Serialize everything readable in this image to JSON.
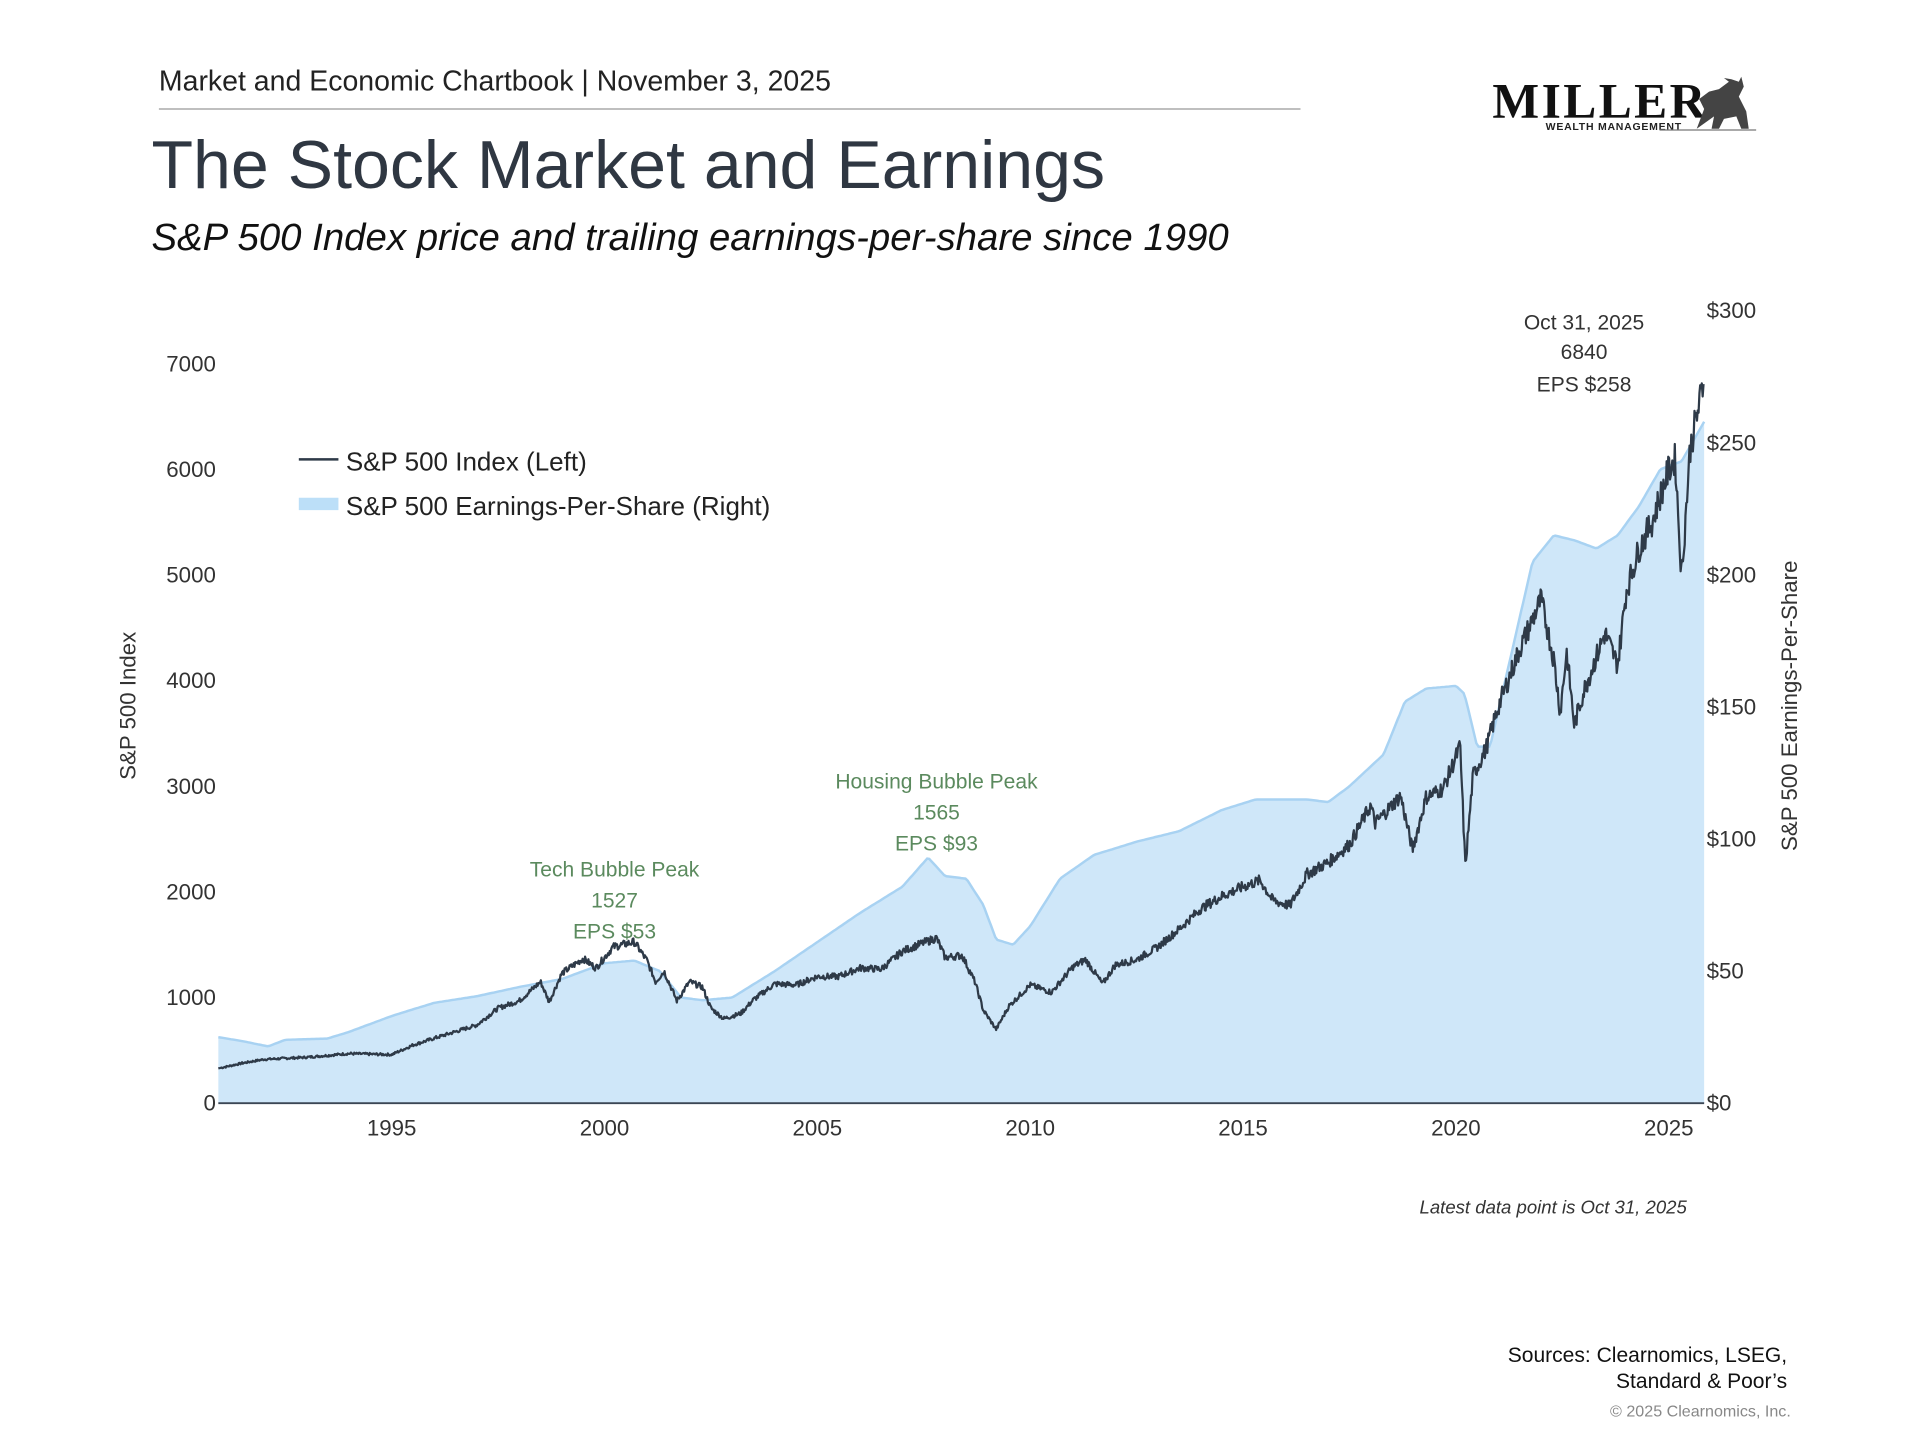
{
  "header": {
    "kicker": "Market and Economic Chartbook | November 3, 2025",
    "title": "The Stock Market and Earnings",
    "subtitle": "S&P 500 Index price and trailing earnings-per-share since 1990"
  },
  "logo": {
    "name": "MILLER",
    "tagline": "WEALTH MANAGEMENT",
    "icon": "bull-icon"
  },
  "colors": {
    "price_line": "#2e3a48",
    "eps_fill": "#cfe7f9",
    "eps_edge": "#a8d2f2",
    "annotation": "#5b8a5e",
    "text": "#2f3742"
  },
  "chart_data": {
    "type": "line+area",
    "xlabel": "",
    "ylabel_left": "S&P 500 Index",
    "ylabel_right": "S&P 500 Earnings-Per-Share",
    "xlim": [
      1990.93,
      2025.83
    ],
    "ylim_left": [
      0,
      7000
    ],
    "ylim_right": [
      0,
      300
    ],
    "x_ticks": [
      "1995",
      "2000",
      "2005",
      "2010",
      "2015",
      "2020",
      "2025"
    ],
    "y_ticks_left": [
      "0",
      "1000",
      "2000",
      "3000",
      "4000",
      "5000",
      "6000",
      "7000"
    ],
    "y_ticks_right": [
      "$0",
      "$50",
      "$100",
      "$150",
      "$200",
      "$250",
      "$300"
    ],
    "grid": false,
    "legend_position": "top-left",
    "legend": [
      "S&P 500 Index (Left)",
      "S&P 500 Earnings-Per-Share (Right)"
    ],
    "series": [
      {
        "name": "S&P 500 Index (Left)",
        "type": "line",
        "axis": "left",
        "x": [
          1990.93,
          1991.5,
          1992,
          1993,
          1994,
          1995,
          1995.5,
          1996,
          1997,
          1997.5,
          1998,
          1998.5,
          1998.7,
          1999,
          1999.5,
          1999.8,
          2000.2,
          2000.7,
          2001,
          2001.2,
          2001.4,
          2001.7,
          2002,
          2002.3,
          2002.5,
          2002.8,
          2003.2,
          2003.5,
          2004,
          2004.5,
          2005,
          2005.5,
          2006,
          2006.5,
          2007,
          2007.5,
          2007.8,
          2008,
          2008.4,
          2008.7,
          2008.9,
          2009.2,
          2009.5,
          2010,
          2010.5,
          2011,
          2011.3,
          2011.7,
          2012,
          2012.5,
          2013,
          2013.5,
          2014,
          2014.5,
          2015,
          2015.4,
          2015.7,
          2016.1,
          2016.5,
          2017,
          2017.5,
          2018,
          2018.1,
          2018.7,
          2018.98,
          2019.3,
          2019.7,
          2020.1,
          2020.22,
          2020.4,
          2020.7,
          2021,
          2021.5,
          2022,
          2022.3,
          2022.45,
          2022.6,
          2022.78,
          2023,
          2023.5,
          2023.8,
          2024,
          2024.3,
          2024.6,
          2025,
          2025.15,
          2025.3,
          2025.5,
          2025.83
        ],
        "y": [
          330,
          380,
          415,
          435,
          470,
          460,
          550,
          615,
          740,
          900,
          970,
          1150,
          960,
          1230,
          1370,
          1280,
          1480,
          1527,
          1350,
          1150,
          1250,
          970,
          1150,
          1100,
          900,
          800,
          850,
          980,
          1130,
          1120,
          1200,
          1200,
          1280,
          1270,
          1440,
          1520,
          1565,
          1380,
          1400,
          1150,
          880,
          700,
          920,
          1120,
          1050,
          1290,
          1360,
          1130,
          1310,
          1360,
          1480,
          1650,
          1840,
          1960,
          2050,
          2110,
          1920,
          1870,
          2170,
          2280,
          2450,
          2820,
          2650,
          2910,
          2400,
          2900,
          2980,
          3380,
          2240,
          3100,
          3350,
          3760,
          4300,
          4770,
          4200,
          3700,
          4280,
          3580,
          3900,
          4450,
          4150,
          4850,
          5250,
          5500,
          6000,
          6100,
          4980,
          6200,
          6840
        ]
      },
      {
        "name": "S&P 500 Earnings-Per-Share (Right)",
        "type": "area",
        "axis": "right",
        "x": [
          1990.93,
          1991.5,
          1992.1,
          1992.5,
          1993.5,
          1994,
          1995,
          1996,
          1997,
          1998,
          1999,
          2000,
          2000.7,
          2001.3,
          2001.8,
          2002.3,
          2003,
          2004,
          2005,
          2006,
          2007,
          2007.6,
          2008,
          2008.5,
          2008.9,
          2009.2,
          2009.6,
          2010,
          2010.7,
          2011.5,
          2012.5,
          2013.5,
          2014.5,
          2015.3,
          2016.5,
          2017,
          2017.5,
          2018.3,
          2018.8,
          2019.3,
          2020,
          2020.2,
          2020.5,
          2020.8,
          2021.3,
          2021.8,
          2022.3,
          2022.8,
          2023.3,
          2023.8,
          2024.3,
          2024.8,
          2025.3,
          2025.83
        ],
        "y": [
          25,
          23.5,
          21.5,
          24,
          24.5,
          27,
          33,
          38,
          40.5,
          44,
          47,
          53,
          54,
          50,
          40,
          39,
          40,
          50,
          61,
          72,
          82,
          93,
          86,
          85,
          75,
          62,
          60,
          67,
          85,
          94,
          99,
          103,
          111,
          115,
          115,
          114,
          120,
          132,
          152,
          157,
          158,
          155,
          135,
          135,
          170,
          205,
          215,
          213,
          210,
          215,
          226,
          240,
          243,
          258
        ]
      }
    ],
    "annotations": [
      {
        "lines": [
          "Tech Bubble Peak",
          "1527",
          "EPS $53"
        ]
      },
      {
        "lines": [
          "Housing Bubble Peak",
          "1565",
          "EPS $93"
        ]
      },
      {
        "lines": [
          "Oct 31, 2025",
          "6840",
          "EPS $258"
        ]
      }
    ],
    "footnote": "Latest data point is Oct 31, 2025"
  },
  "footer": {
    "sources_line1": "Sources: Clearnomics, LSEG,",
    "sources_line2": "Standard & Poor’s",
    "copyright": "© 2025 Clearnomics, Inc."
  }
}
